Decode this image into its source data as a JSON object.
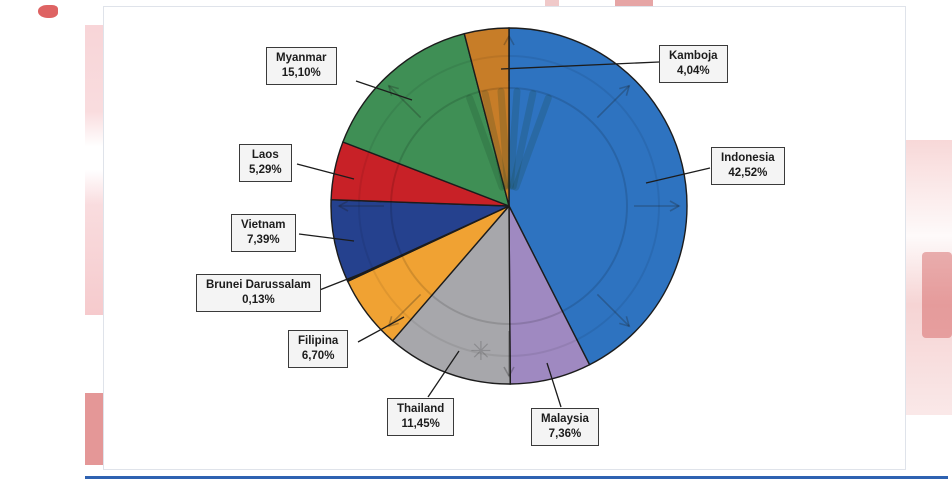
{
  "page": {
    "background_color": "#ffffff",
    "footer_rule_color": "#2e62b1",
    "panel_border_color": "#dfe3ea"
  },
  "chart_data": {
    "type": "pie",
    "title": "",
    "unit": "%",
    "decimal_style": "comma",
    "start_angle_deg": 0,
    "direction": "clockwise",
    "legend_position": "callout-labels",
    "stroke_color": "#1c1c1c",
    "slices": [
      {
        "label": "Indonesia",
        "value": 42.52,
        "display": "42,52%",
        "color": "#2e73c0"
      },
      {
        "label": "Malaysia",
        "value": 7.36,
        "display": "7,36%",
        "color": "#9f89c1"
      },
      {
        "label": "Thailand",
        "value": 11.45,
        "display": "11,45%",
        "color": "#a7a7ab"
      },
      {
        "label": "Filipina",
        "value": 6.7,
        "display": "6,70%",
        "color": "#f0a233"
      },
      {
        "label": "Brunei Darussalam",
        "value": 0.13,
        "display": "0,13%",
        "color": "#1d3b66"
      },
      {
        "label": "Vietnam",
        "value": 7.39,
        "display": "7,39%",
        "color": "#25418e"
      },
      {
        "label": "Laos",
        "value": 5.29,
        "display": "5,29%",
        "color": "#c82127"
      },
      {
        "label": "Myanmar",
        "value": 15.1,
        "display": "15,10%",
        "color": "#3f8f55"
      },
      {
        "label": "Kamboja",
        "value": 4.04,
        "display": "4,04%",
        "color": "#c77d28"
      }
    ]
  }
}
